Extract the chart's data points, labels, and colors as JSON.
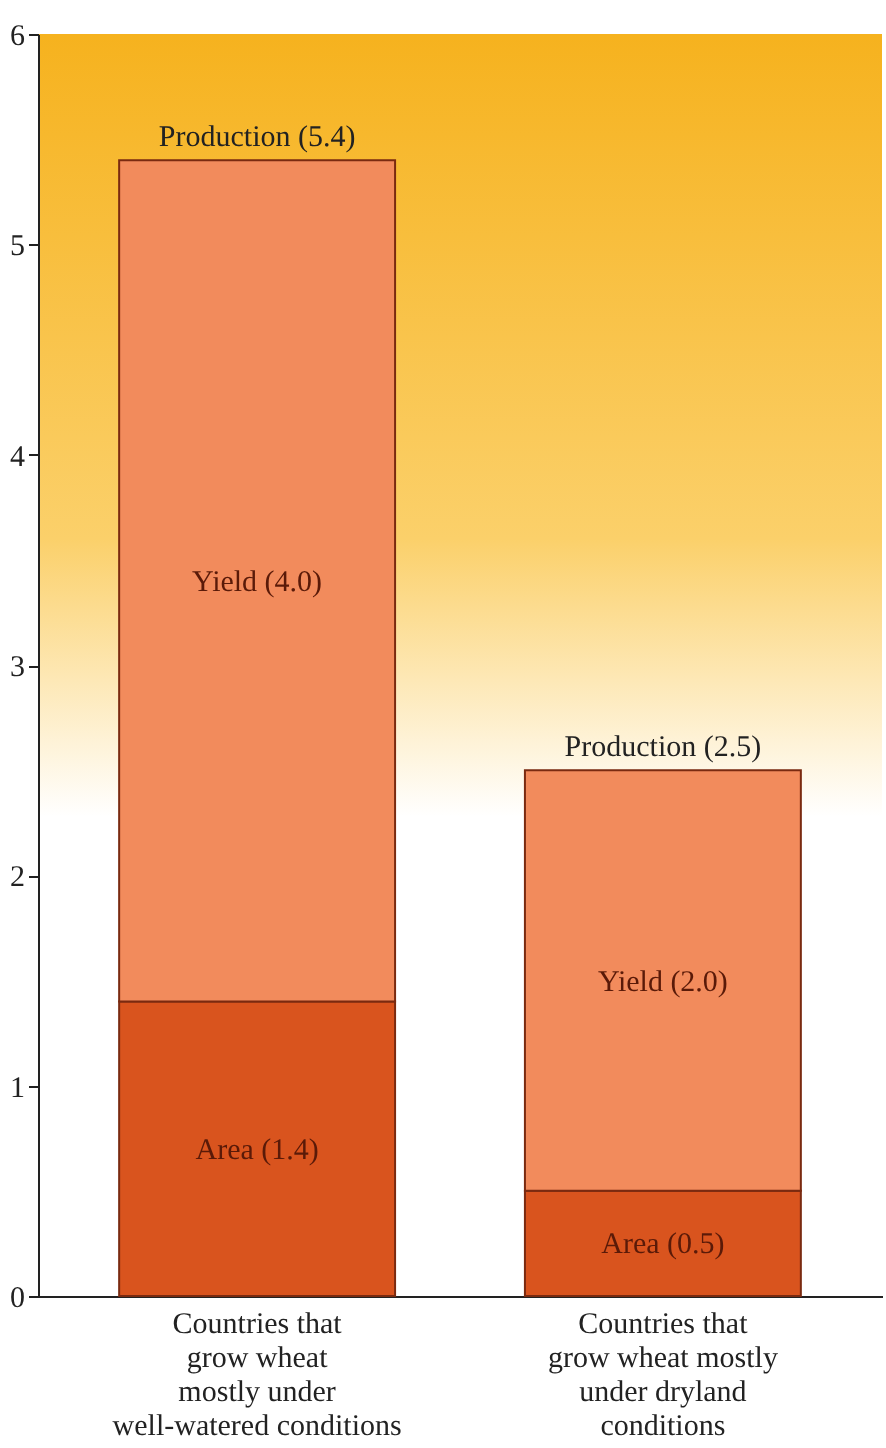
{
  "chart_data": {
    "type": "bar",
    "stacked": true,
    "categories": [
      "Countries that\ngrow wheat\nmostly under\nwell-watered conditions",
      "Countries that\ngrow wheat mostly\nunder dryland\nconditions"
    ],
    "series": [
      {
        "color": "#d9541e",
        "values": [
          1.4,
          0.5
        ],
        "value_labels": [
          "Area (1.4)",
          "Area (0.5)"
        ]
      },
      {
        "color": "#f28b5c",
        "values": [
          4.0,
          2.0
        ],
        "value_labels": [
          "Yield (4.0)",
          "Yield (2.0)"
        ]
      }
    ],
    "totals": [
      "Production (5.4)",
      "Production (2.5)"
    ],
    "ylim": [
      0,
      6
    ],
    "yticks": [
      0,
      1,
      2,
      3,
      4,
      5,
      6
    ],
    "grid": false
  }
}
